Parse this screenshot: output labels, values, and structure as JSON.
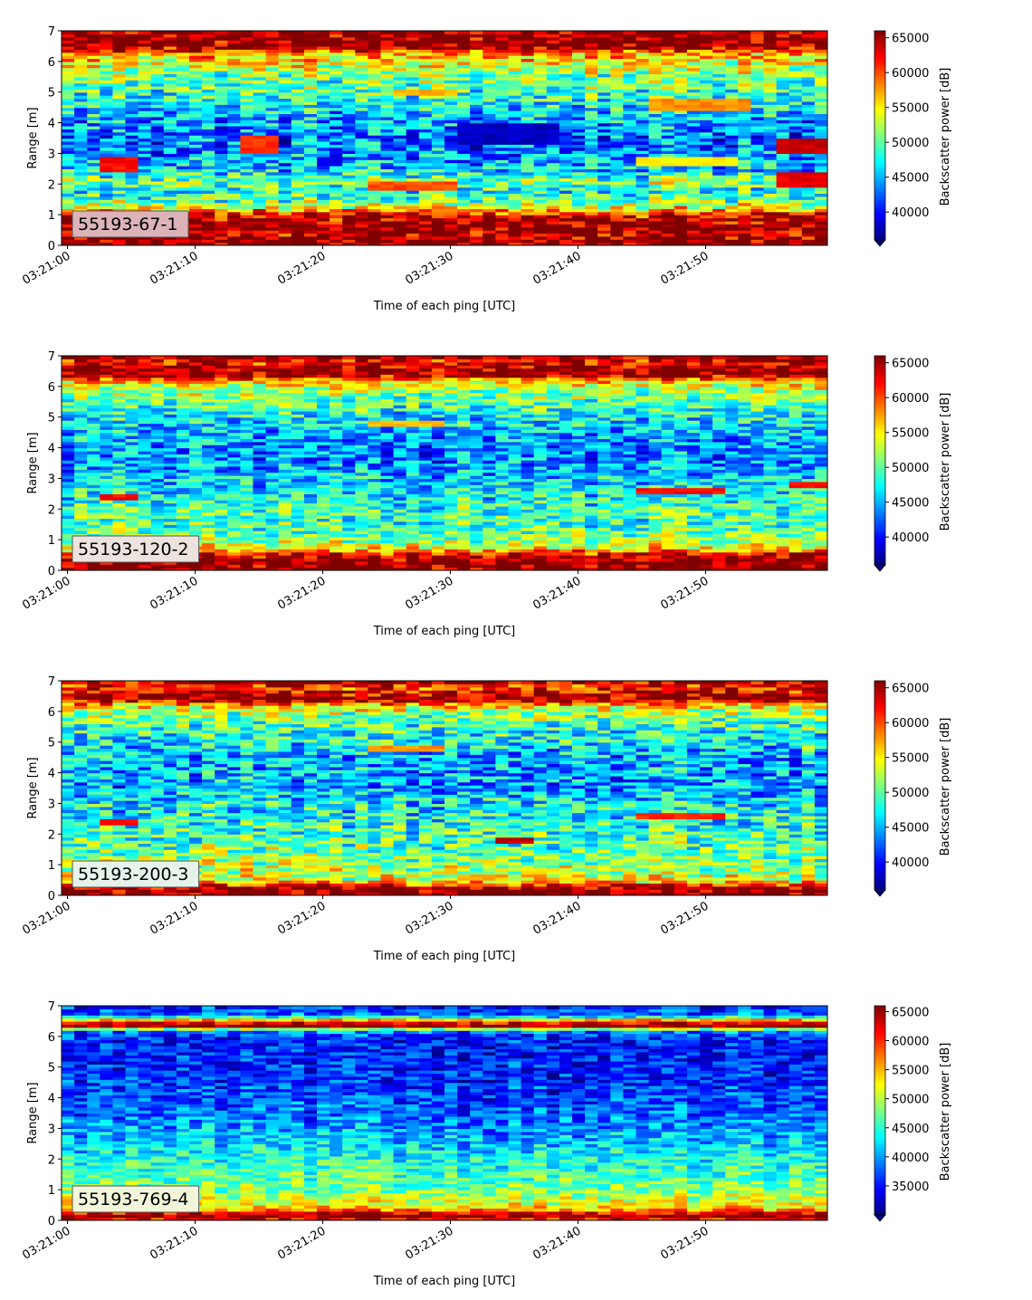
{
  "figure": {
    "xlabel": "Time of each ping [UTC]",
    "ylabel": "Range [m]",
    "colorbar_label": "Backscatter power [dB]",
    "colormap": "jet",
    "x_ticks": [
      "03:21:00",
      "03:21:10",
      "03:21:20",
      "03:21:30",
      "03:21:40",
      "03:21:50"
    ],
    "y_ticks": [
      "0",
      "1",
      "2",
      "3",
      "4",
      "5",
      "6",
      "7"
    ]
  },
  "chart_data": [
    {
      "type": "heatmap",
      "label": "55193-67-1",
      "label_box_color": "#dbb3b8",
      "x_range_seconds": [
        0,
        59
      ],
      "ylim": [
        0,
        7
      ],
      "colorbar_ticks": [
        40000,
        45000,
        50000,
        55000,
        60000,
        65000
      ],
      "vmin": 36000,
      "vmax": 66000,
      "profile": {
        "range_m": [
          0,
          0.2,
          0.3,
          0.6,
          0.9,
          1.1,
          1.2,
          1.5,
          1.8,
          2.0,
          2.5,
          3.0,
          3.5,
          4.0,
          4.5,
          5.0,
          5.5,
          6.0,
          6.3,
          6.5,
          7.0
        ],
        "mean_db": [
          66000,
          66000,
          64000,
          66000,
          64000,
          60000,
          55000,
          50000,
          47000,
          52000,
          46000,
          44000,
          43000,
          45000,
          47000,
          49000,
          51000,
          55000,
          58000,
          66000,
          66000
        ]
      },
      "noise_db": 5500,
      "features": [
        {
          "t": [
            24,
            30
          ],
          "r": [
            1.8,
            2.1
          ],
          "db": 60000
        },
        {
          "t": [
            14,
            16
          ],
          "r": [
            3.0,
            3.6
          ],
          "db": 61000
        },
        {
          "t": [
            3,
            5
          ],
          "r": [
            2.4,
            2.9
          ],
          "db": 62000
        },
        {
          "t": [
            56,
            59
          ],
          "r": [
            3.0,
            3.5
          ],
          "db": 64000
        },
        {
          "t": [
            56,
            59
          ],
          "r": [
            1.9,
            2.4
          ],
          "db": 63000
        },
        {
          "t": [
            26,
            30
          ],
          "r": [
            4.9,
            5.1
          ],
          "db": 57000
        },
        {
          "t": [
            46,
            53
          ],
          "r": [
            4.4,
            4.8
          ],
          "db": 58000
        },
        {
          "t": [
            45,
            52
          ],
          "r": [
            2.6,
            2.9
          ],
          "db": 55000
        },
        {
          "t": [
            31,
            38
          ],
          "r": [
            3.3,
            4.0
          ],
          "db": 38000
        }
      ]
    },
    {
      "type": "heatmap",
      "label": "55193-120-2",
      "label_box_color": "#ece3de",
      "x_range_seconds": [
        0,
        59
      ],
      "ylim": [
        0,
        7
      ],
      "colorbar_ticks": [
        40000,
        45000,
        50000,
        55000,
        60000,
        65000
      ],
      "vmin": 36000,
      "vmax": 66000,
      "profile": {
        "range_m": [
          0,
          0.15,
          0.3,
          0.5,
          0.7,
          1.0,
          1.5,
          2.0,
          2.5,
          3.0,
          3.5,
          4.0,
          4.5,
          5.0,
          5.5,
          6.0,
          6.2,
          6.4,
          6.5,
          6.8,
          7.0
        ],
        "mean_db": [
          66000,
          66000,
          66000,
          64000,
          56000,
          51000,
          49000,
          49000,
          47000,
          46000,
          44000,
          44000,
          45000,
          47000,
          50000,
          53000,
          57000,
          66000,
          66000,
          62000,
          66000
        ]
      },
      "noise_db": 5000,
      "features": [
        {
          "t": [
            45,
            51
          ],
          "r": [
            2.5,
            2.7
          ],
          "db": 62000
        },
        {
          "t": [
            24,
            29
          ],
          "r": [
            4.7,
            4.85
          ],
          "db": 57000
        },
        {
          "t": [
            3,
            5
          ],
          "r": [
            2.3,
            2.5
          ],
          "db": 62000
        },
        {
          "t": [
            57,
            59
          ],
          "r": [
            2.7,
            2.9
          ],
          "db": 62000
        }
      ]
    },
    {
      "type": "heatmap",
      "label": "55193-200-3",
      "label_box_color": "#e5f3ea",
      "x_range_seconds": [
        0,
        59
      ],
      "ylim": [
        0,
        7
      ],
      "colorbar_ticks": [
        40000,
        45000,
        50000,
        55000,
        60000,
        65000
      ],
      "vmin": 36000,
      "vmax": 66000,
      "profile": {
        "range_m": [
          0,
          0.15,
          0.3,
          0.5,
          1.0,
          1.5,
          2.0,
          2.5,
          3.0,
          3.5,
          4.0,
          4.5,
          5.0,
          5.5,
          6.0,
          6.2,
          6.4,
          6.6,
          6.8,
          7.0
        ],
        "mean_db": [
          66000,
          66000,
          64000,
          54000,
          52000,
          50000,
          49000,
          48000,
          47000,
          45000,
          45000,
          45000,
          47000,
          49000,
          52000,
          56000,
          66000,
          64000,
          60000,
          66000
        ]
      },
      "noise_db": 5500,
      "features": [
        {
          "t": [
            24,
            29
          ],
          "r": [
            4.7,
            4.85
          ],
          "db": 58000
        },
        {
          "t": [
            45,
            51
          ],
          "r": [
            2.5,
            2.65
          ],
          "db": 61000
        },
        {
          "t": [
            3,
            5
          ],
          "r": [
            2.3,
            2.5
          ],
          "db": 62000
        },
        {
          "t": [
            34,
            36
          ],
          "r": [
            1.7,
            1.85
          ],
          "db": 64000
        }
      ]
    },
    {
      "type": "heatmap",
      "label": "55193-769-4",
      "label_box_color": "#f1f5da",
      "x_range_seconds": [
        0,
        59
      ],
      "ylim": [
        0,
        7
      ],
      "colorbar_ticks": [
        35000,
        40000,
        45000,
        50000,
        55000,
        60000,
        65000
      ],
      "vmin": 30000,
      "vmax": 66000,
      "profile": {
        "range_m": [
          0,
          0.1,
          0.2,
          0.3,
          0.5,
          1.0,
          1.5,
          2.0,
          2.5,
          3.0,
          3.5,
          4.0,
          4.5,
          5.0,
          5.5,
          6.0,
          6.2,
          6.35,
          6.5,
          6.7,
          7.0
        ],
        "mean_db": [
          56000,
          66000,
          66000,
          58000,
          52000,
          48000,
          46000,
          44000,
          42000,
          40000,
          38000,
          37000,
          36000,
          35500,
          35000,
          36000,
          40000,
          66000,
          60000,
          38000,
          36000
        ]
      },
      "noise_db": 4500,
      "features": []
    }
  ]
}
